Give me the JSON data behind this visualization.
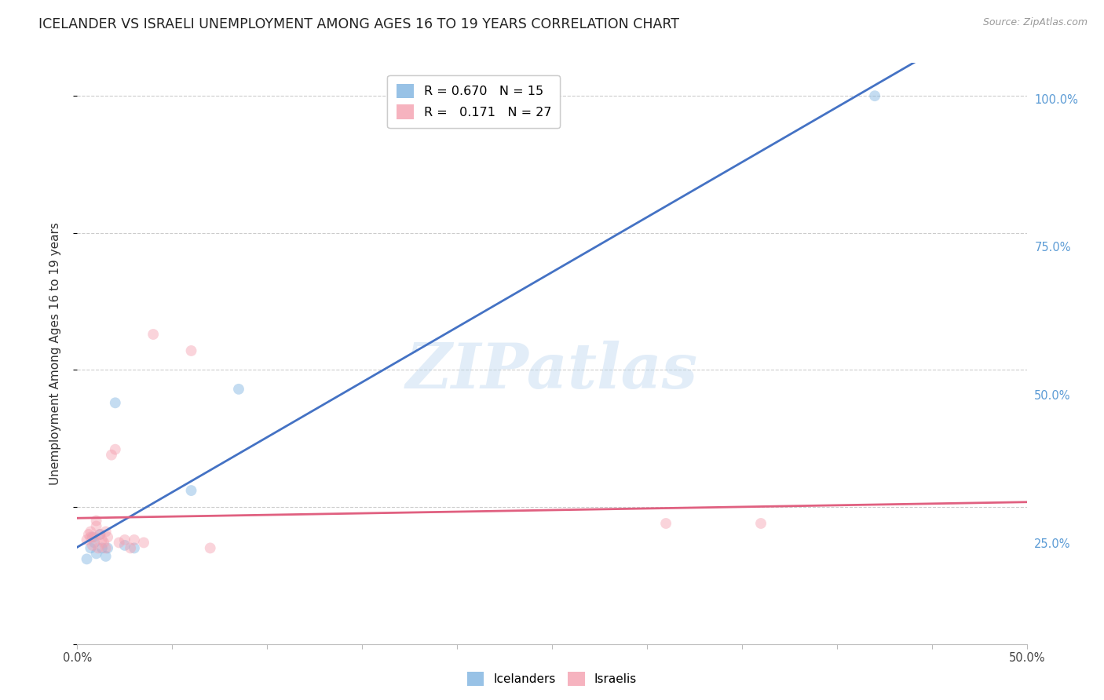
{
  "title": "ICELANDER VS ISRAELI UNEMPLOYMENT AMONG AGES 16 TO 19 YEARS CORRELATION CHART",
  "source": "Source: ZipAtlas.com",
  "ylabel": "Unemployment Among Ages 16 to 19 years",
  "ytick_positions": [
    0.0,
    0.25,
    0.5,
    0.75,
    1.0
  ],
  "xlim": [
    0.0,
    0.5
  ],
  "ylim": [
    0.08,
    1.06
  ],
  "iceland_R": "0.670",
  "iceland_N": "15",
  "israel_R": "0.171",
  "israel_N": "27",
  "iceland_color": "#7EB3E0",
  "israel_color": "#F4A0B0",
  "iceland_line_color": "#4472C4",
  "israel_line_color": "#E06080",
  "watermark_text": "ZIPatlas",
  "iceland_x": [
    0.005,
    0.007,
    0.008,
    0.009,
    0.01,
    0.012,
    0.013,
    0.015,
    0.016,
    0.02,
    0.025,
    0.03,
    0.06,
    0.085,
    0.42
  ],
  "iceland_y": [
    0.155,
    0.175,
    0.195,
    0.185,
    0.165,
    0.2,
    0.175,
    0.16,
    0.175,
    0.44,
    0.18,
    0.175,
    0.28,
    0.465,
    1.0
  ],
  "israel_x": [
    0.005,
    0.006,
    0.007,
    0.007,
    0.008,
    0.009,
    0.01,
    0.01,
    0.011,
    0.012,
    0.013,
    0.014,
    0.015,
    0.015,
    0.016,
    0.018,
    0.02,
    0.022,
    0.025,
    0.028,
    0.03,
    0.035,
    0.04,
    0.06,
    0.07,
    0.31,
    0.36
  ],
  "israel_y": [
    0.19,
    0.2,
    0.195,
    0.205,
    0.18,
    0.195,
    0.215,
    0.225,
    0.175,
    0.2,
    0.19,
    0.185,
    0.175,
    0.205,
    0.195,
    0.345,
    0.355,
    0.185,
    0.19,
    0.175,
    0.19,
    0.185,
    0.565,
    0.535,
    0.175,
    0.22,
    0.22
  ],
  "background_color": "#FFFFFF",
  "grid_color": "#CCCCCC",
  "right_ytick_color": "#5B9BD5",
  "title_fontsize": 12.5,
  "axis_label_fontsize": 11,
  "tick_fontsize": 10.5,
  "marker_size": 100,
  "marker_alpha": 0.45,
  "line_width": 2.0
}
